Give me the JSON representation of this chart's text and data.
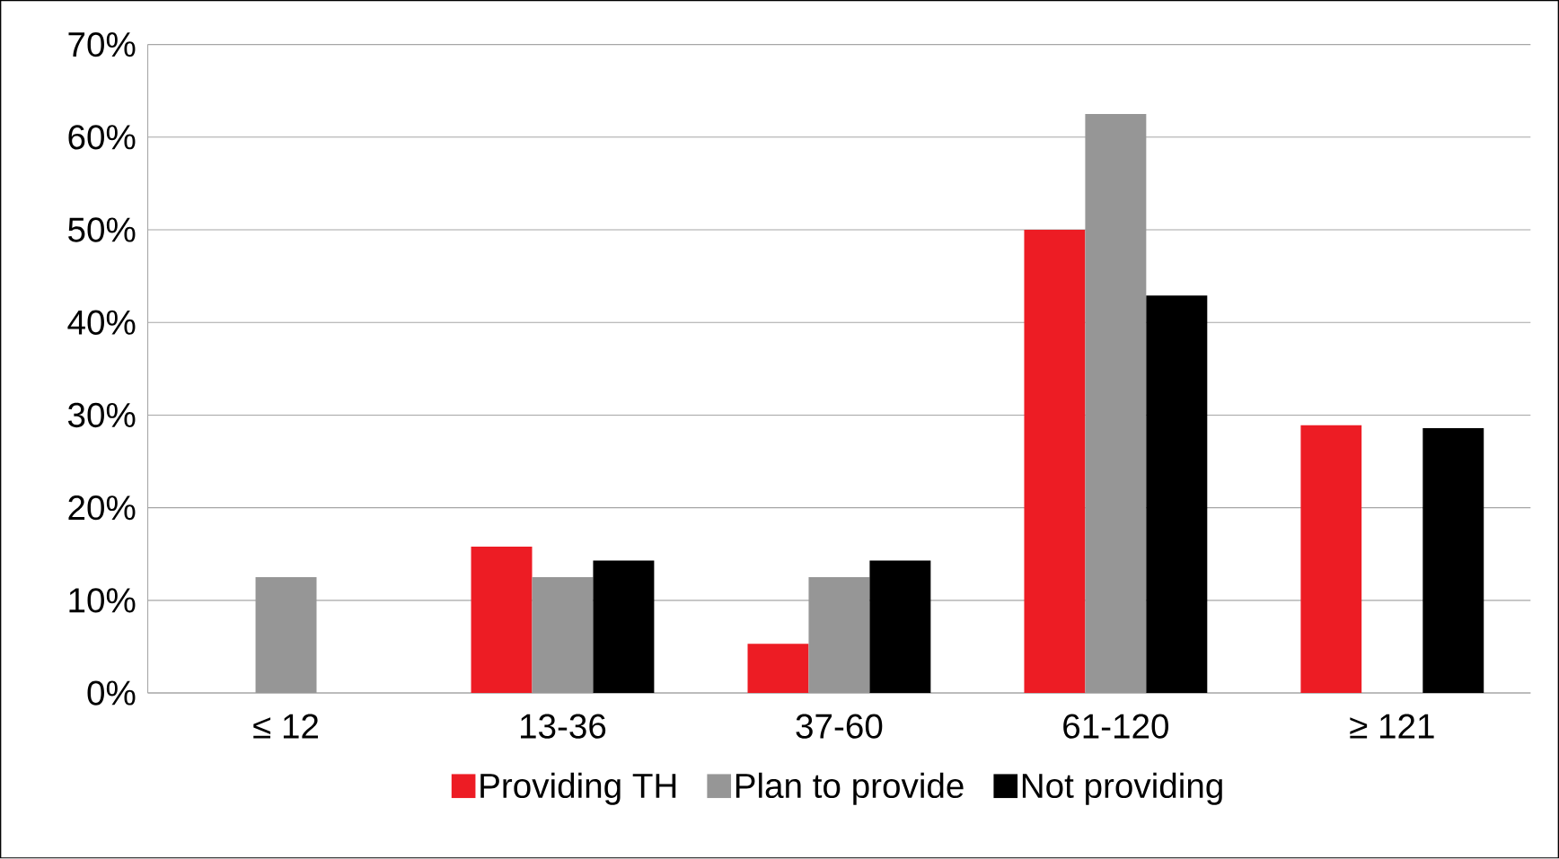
{
  "chart_data": {
    "type": "bar",
    "categories": [
      "≤ 12",
      "13-36",
      "37-60",
      "61-120",
      "≥ 121"
    ],
    "series": [
      {
        "name": "Providing TH",
        "color": "#ed1c24",
        "values": [
          0,
          15.8,
          5.3,
          50,
          28.9
        ]
      },
      {
        "name": "Plan to provide",
        "color": "#969696",
        "values": [
          12.5,
          12.5,
          12.5,
          62.5,
          0
        ]
      },
      {
        "name": "Not providing",
        "color": "#000000",
        "values": [
          0,
          14.3,
          14.3,
          42.9,
          28.6
        ]
      }
    ],
    "ylim": [
      0,
      70
    ],
    "yticks": [
      {
        "value": 0,
        "label": "0%"
      },
      {
        "value": 10,
        "label": "10%"
      },
      {
        "value": 20,
        "label": "20%"
      },
      {
        "value": 30,
        "label": "30%"
      },
      {
        "value": 40,
        "label": "40%"
      },
      {
        "value": 50,
        "label": "50%"
      },
      {
        "value": 60,
        "label": "60%"
      },
      {
        "value": 70,
        "label": "70%"
      }
    ],
    "grid": "y",
    "legend": "bottom"
  }
}
